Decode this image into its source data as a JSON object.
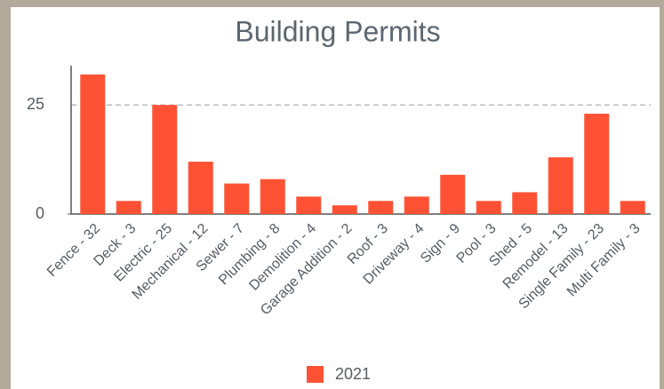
{
  "chart_data": {
    "type": "bar",
    "title": "Building Permits",
    "categories": [
      "Fence - 32",
      "Deck - 3",
      "Electric - 25",
      "Mechanical - 12",
      "Sewer - 7",
      "Plumbing - 8",
      "Demolition - 4",
      "Garage Addition - 2",
      "Roof - 3",
      "Driveway - 4",
      "Sign - 9",
      "Pool - 3",
      "Shed - 5",
      "Remodel - 13",
      "Single Family - 23",
      "Multi Family - 3"
    ],
    "series": [
      {
        "name": "2021",
        "color": "#ff5234",
        "values": [
          32,
          3,
          25,
          12,
          7,
          8,
          4,
          2,
          3,
          4,
          9,
          3,
          5,
          13,
          23,
          3
        ]
      }
    ],
    "ylim": [
      0,
      34
    ],
    "yticks": [
      0,
      25
    ],
    "grid": true,
    "legend": "bottom"
  }
}
